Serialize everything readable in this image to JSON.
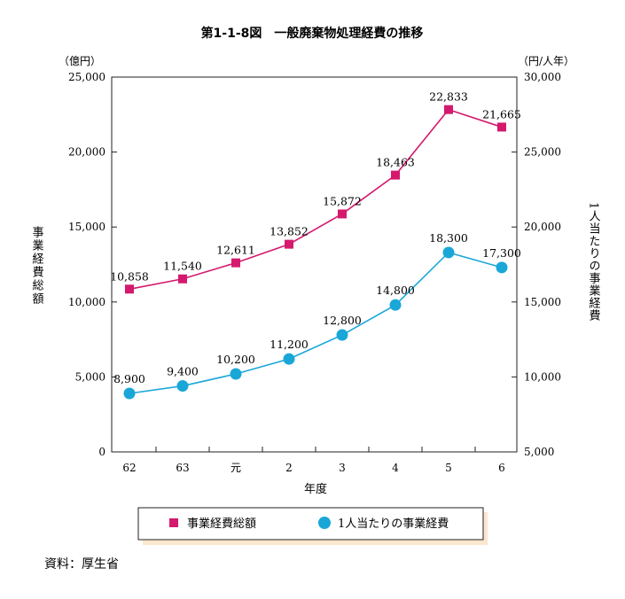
{
  "figure_title": "第1-1-8図　一般廃棄物処理経費の推移",
  "left_axis_unit": "（億円）",
  "right_axis_unit": "（円/人年）",
  "left_axis_title": "事業経費総額",
  "right_axis_title": "1人当たりの事業経費",
  "x_axis_title": "年度",
  "source_note": "資料：厚生省",
  "colors": {
    "total": "#d4196e",
    "per_capita": "#1aa7d8",
    "legend_shadow": "#fbe7cf"
  },
  "chart_data": {
    "type": "line",
    "categories": [
      "62",
      "63",
      "元",
      "2",
      "3",
      "4",
      "5",
      "6"
    ],
    "xlabel": "年度",
    "left_axis": {
      "label": "事業経費総額",
      "unit": "（億円）",
      "range": [
        0,
        25000
      ],
      "ticks": [
        "0",
        "5,000",
        "10,000",
        "15,000",
        "20,000",
        "25,000"
      ]
    },
    "right_axis": {
      "label": "1人当たりの事業経費",
      "unit": "（円/人年）",
      "range": [
        5000,
        30000
      ],
      "ticks": [
        "5,000",
        "10,000",
        "15,000",
        "20,000",
        "25,000",
        "30,000"
      ]
    },
    "series": [
      {
        "name": "事業経費総額",
        "axis": "left",
        "marker": "square",
        "values": [
          10858,
          11540,
          12611,
          13852,
          15872,
          18463,
          22833,
          21665
        ],
        "labels": [
          "10,858",
          "11,540",
          "12,611",
          "13,852",
          "15,872",
          "18,463",
          "22,833",
          "21,665"
        ]
      },
      {
        "name": "1人当たりの事業経費",
        "axis": "right",
        "marker": "circle",
        "values": [
          8900,
          9400,
          10200,
          11200,
          12800,
          14800,
          18300,
          17300
        ],
        "labels": [
          "8,900",
          "9,400",
          "10,200",
          "11,200",
          "12,800",
          "14,800",
          "18,300",
          "17,300"
        ]
      }
    ],
    "legend": {
      "placement": "bottom"
    },
    "grid": false
  }
}
